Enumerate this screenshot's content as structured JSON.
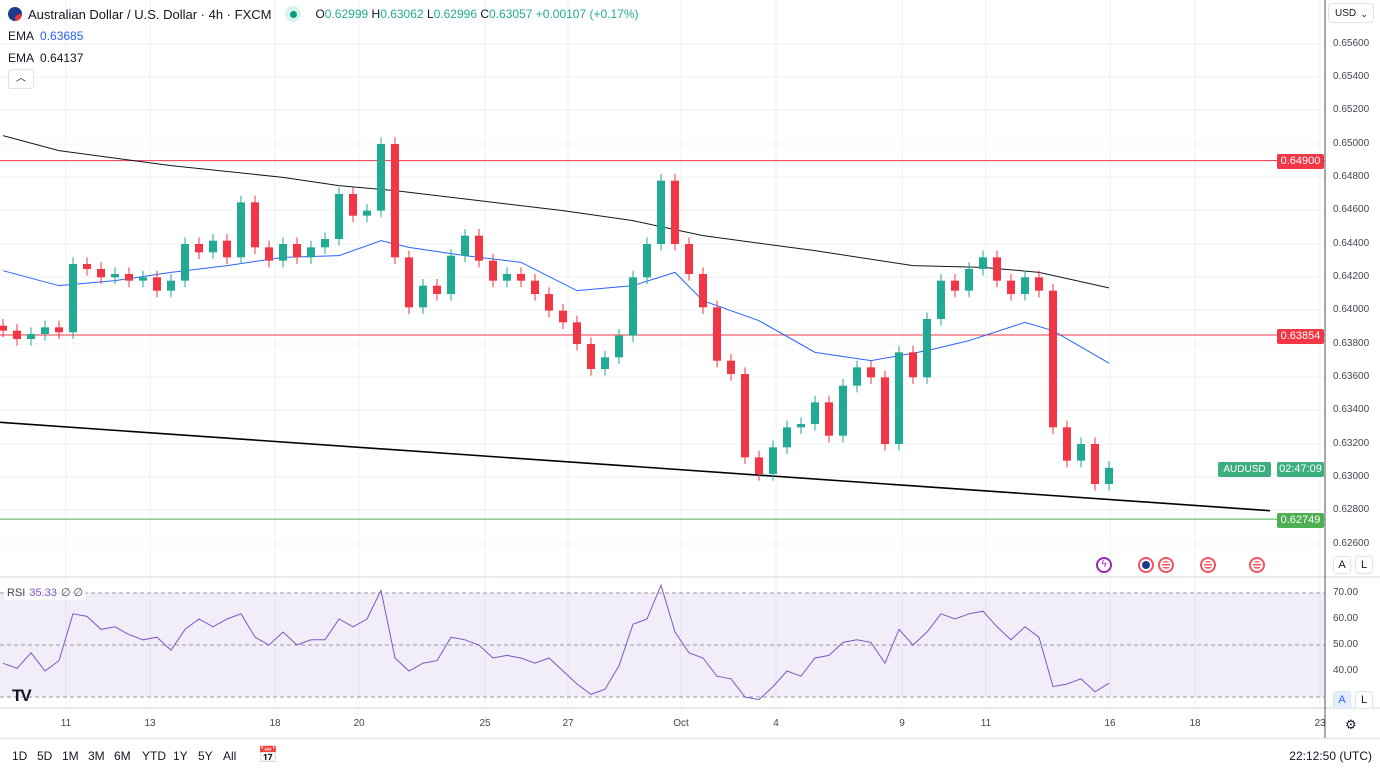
{
  "header": {
    "title": "Australian Dollar / U.S. Dollar · 4h · FXCM",
    "ohlc": {
      "o_label": "O",
      "o": "0.62999",
      "h_label": "H",
      "h": "0.63062",
      "l_label": "L",
      "l": "0.62996",
      "c_label": "C",
      "c": "0.63057",
      "change": "+0.00107 (+0.17%)"
    },
    "ema1": {
      "label": "EMA",
      "value": "0.63685"
    },
    "ema2": {
      "label": "EMA",
      "value": "0.64137"
    },
    "collapse_icon": "chevron-up-icon"
  },
  "currency": {
    "label": "USD"
  },
  "colors": {
    "up": "#22ab94",
    "down": "#f23645",
    "ema50": "#2962ff",
    "ema200": "#131722",
    "rsi": "#7e57c2",
    "support": "#4caf50",
    "resistance": "#f23645"
  },
  "price_tags": {
    "r1": "0.64900",
    "r2": "0.63854",
    "s1": "0.62749",
    "symbol": "AUDUSD",
    "countdown": "02:47:09"
  },
  "scale_buttons": {
    "auto": "A",
    "log": "L"
  },
  "rsi_legend": {
    "label": "RSI",
    "value": "35.33",
    "extra1": "∅",
    "extra2": "∅"
  },
  "bottom_bar": {
    "ranges": [
      "1D",
      "5D",
      "1M",
      "3M",
      "6M",
      "YTD",
      "1Y",
      "5Y",
      "All"
    ],
    "clock": "22:12:50 (UTC)"
  },
  "chart_data": {
    "type": "candlestick",
    "title": "Australian Dollar / U.S. Dollar · 4h · FXCM",
    "ylim": [
      0.6255,
      0.6575
    ],
    "y_ticks": [
      "0.65600",
      "0.65400",
      "0.65200",
      "0.65000",
      "0.64800",
      "0.64600",
      "0.64400",
      "0.64200",
      "0.64000",
      "0.63800",
      "0.63600",
      "0.63400",
      "0.63200",
      "0.63000",
      "0.62800",
      "0.62600"
    ],
    "x_ticks": [
      "11",
      "13",
      "18",
      "20",
      "25",
      "27",
      "Oct",
      "4",
      "9",
      "11",
      "16",
      "18",
      "23"
    ],
    "closes": [
      0.6388,
      0.6383,
      0.6386,
      0.639,
      0.6387,
      0.6428,
      0.6425,
      0.642,
      0.6422,
      0.6418,
      0.642,
      0.6412,
      0.6418,
      0.644,
      0.6435,
      0.6442,
      0.6432,
      0.6465,
      0.6438,
      0.643,
      0.644,
      0.6432,
      0.6438,
      0.6443,
      0.647,
      0.6457,
      0.646,
      0.65,
      0.6432,
      0.6402,
      0.6415,
      0.641,
      0.6433,
      0.6445,
      0.643,
      0.6418,
      0.6422,
      0.6418,
      0.641,
      0.64,
      0.6393,
      0.638,
      0.6365,
      0.6372,
      0.6385,
      0.642,
      0.644,
      0.6478,
      0.644,
      0.6422,
      0.6402,
      0.637,
      0.6362,
      0.6312,
      0.6302,
      0.6318,
      0.633,
      0.6332,
      0.6345,
      0.6325,
      0.6355,
      0.6366,
      0.636,
      0.632,
      0.6375,
      0.636,
      0.6395,
      0.6418,
      0.6412,
      0.6425,
      0.6432,
      0.6418,
      0.641,
      0.642,
      0.6412,
      0.633,
      0.631,
      0.632,
      0.6296,
      0.63057
    ],
    "ema50": [
      [
        0,
        0.6424
      ],
      [
        4,
        0.6415
      ],
      [
        8,
        0.6418
      ],
      [
        12,
        0.6423
      ],
      [
        16,
        0.6427
      ],
      [
        20,
        0.6432
      ],
      [
        24,
        0.6433
      ],
      [
        27,
        0.6442
      ],
      [
        29,
        0.6438
      ],
      [
        33,
        0.6433
      ],
      [
        37,
        0.6429
      ],
      [
        41,
        0.6412
      ],
      [
        45,
        0.6415
      ],
      [
        48,
        0.6423
      ],
      [
        50,
        0.6406
      ],
      [
        54,
        0.6394
      ],
      [
        58,
        0.6375
      ],
      [
        62,
        0.637
      ],
      [
        66,
        0.6376
      ],
      [
        69,
        0.6382
      ],
      [
        73,
        0.6393
      ],
      [
        75,
        0.6388
      ],
      [
        79,
        0.63685
      ]
    ],
    "ema200": [
      [
        0,
        0.6505
      ],
      [
        4,
        0.6496
      ],
      [
        12,
        0.6487
      ],
      [
        20,
        0.648
      ],
      [
        24,
        0.6475
      ],
      [
        28,
        0.6472
      ],
      [
        34,
        0.6466
      ],
      [
        40,
        0.646
      ],
      [
        45,
        0.6454
      ],
      [
        50,
        0.6445
      ],
      [
        58,
        0.6436
      ],
      [
        65,
        0.6427
      ],
      [
        70,
        0.6426
      ],
      [
        74,
        0.6423
      ],
      [
        79,
        0.64137
      ]
    ],
    "trendline": [
      0.6333,
      0.628
    ],
    "horizontal_levels": [
      0.649,
      0.63854,
      0.62749
    ],
    "rsi": {
      "ylim": [
        25,
        75
      ],
      "y_ticks": [
        "70.00",
        "60.00",
        "50.00",
        "40.00"
      ],
      "band": [
        30,
        70
      ],
      "values": [
        43,
        41,
        47,
        40,
        44,
        62,
        61,
        56,
        57,
        54,
        52,
        53,
        48,
        56,
        60,
        57,
        60,
        62,
        53,
        50,
        55,
        50,
        52,
        52,
        60,
        57,
        60,
        71,
        45,
        40,
        43,
        44,
        53,
        52,
        50,
        45,
        46,
        45,
        43,
        45,
        40,
        35,
        31,
        33,
        42,
        58,
        60,
        73,
        55,
        47,
        45,
        38,
        37,
        30,
        29,
        34,
        40,
        38,
        45,
        46,
        51,
        52,
        51,
        43,
        56,
        50,
        55,
        62,
        60,
        62,
        63,
        57,
        52,
        57,
        53,
        34,
        35,
        37,
        32,
        35.33
      ]
    }
  }
}
